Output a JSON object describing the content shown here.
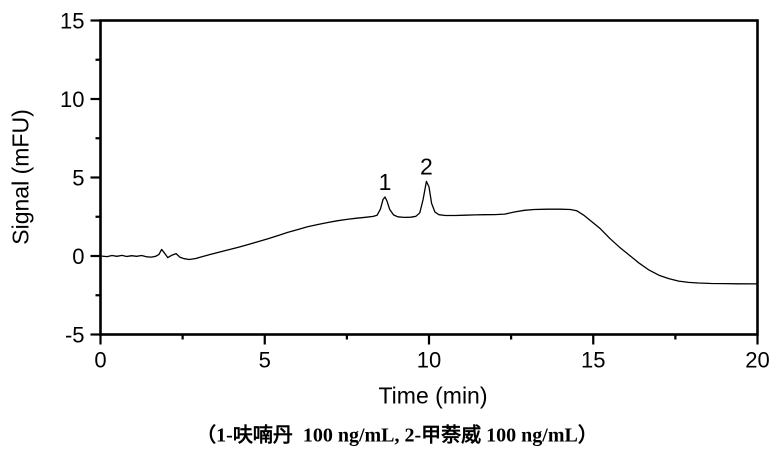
{
  "chart_data": {
    "type": "line",
    "title": "",
    "xlabel": "Time (min)",
    "ylabel": "Signal (mFU)",
    "xlim": [
      0,
      20
    ],
    "ylim": [
      -5,
      15
    ],
    "x_major_ticks": [
      0,
      5,
      10,
      15,
      20
    ],
    "x_minor_ticks": [
      2.5,
      7.5,
      12.5,
      17.5
    ],
    "y_major_ticks": [
      -5,
      0,
      5,
      10,
      15
    ],
    "y_minor_ticks": [
      -2.5,
      2.5,
      7.5,
      12.5
    ],
    "grid": false,
    "legend_position": "none",
    "line_color": "#000000",
    "frame_color": "#000000",
    "background_color": "#ffffff",
    "series": [
      {
        "name": "chromatogram-signal",
        "points": [
          [
            0.0,
            0.0
          ],
          [
            0.2,
            -0.04
          ],
          [
            0.35,
            0.03
          ],
          [
            0.5,
            -0.02
          ],
          [
            0.65,
            0.04
          ],
          [
            0.8,
            -0.03
          ],
          [
            0.95,
            0.02
          ],
          [
            1.1,
            -0.02
          ],
          [
            1.25,
            0.03
          ],
          [
            1.4,
            -0.05
          ],
          [
            1.55,
            -0.07
          ],
          [
            1.68,
            -0.02
          ],
          [
            1.78,
            0.1
          ],
          [
            1.86,
            0.42
          ],
          [
            1.95,
            0.18
          ],
          [
            2.05,
            -0.1
          ],
          [
            2.18,
            0.06
          ],
          [
            2.3,
            0.15
          ],
          [
            2.42,
            -0.08
          ],
          [
            2.55,
            -0.17
          ],
          [
            2.7,
            -0.22
          ],
          [
            2.9,
            -0.16
          ],
          [
            3.1,
            -0.04
          ],
          [
            3.35,
            0.1
          ],
          [
            3.6,
            0.24
          ],
          [
            3.9,
            0.4
          ],
          [
            4.2,
            0.56
          ],
          [
            4.5,
            0.73
          ],
          [
            4.8,
            0.92
          ],
          [
            5.1,
            1.1
          ],
          [
            5.4,
            1.3
          ],
          [
            5.7,
            1.5
          ],
          [
            6.0,
            1.68
          ],
          [
            6.3,
            1.86
          ],
          [
            6.6,
            2.0
          ],
          [
            6.9,
            2.13
          ],
          [
            7.2,
            2.24
          ],
          [
            7.5,
            2.33
          ],
          [
            7.8,
            2.41
          ],
          [
            8.1,
            2.47
          ],
          [
            8.3,
            2.52
          ],
          [
            8.42,
            2.6
          ],
          [
            8.52,
            2.98
          ],
          [
            8.6,
            3.6
          ],
          [
            8.66,
            3.76
          ],
          [
            8.72,
            3.5
          ],
          [
            8.8,
            2.98
          ],
          [
            8.92,
            2.62
          ],
          [
            9.05,
            2.5
          ],
          [
            9.25,
            2.46
          ],
          [
            9.45,
            2.47
          ],
          [
            9.6,
            2.53
          ],
          [
            9.72,
            2.75
          ],
          [
            9.82,
            3.6
          ],
          [
            9.92,
            4.75
          ],
          [
            10.0,
            4.4
          ],
          [
            10.08,
            3.35
          ],
          [
            10.18,
            2.8
          ],
          [
            10.3,
            2.63
          ],
          [
            10.5,
            2.58
          ],
          [
            10.8,
            2.58
          ],
          [
            11.1,
            2.6
          ],
          [
            11.4,
            2.62
          ],
          [
            11.7,
            2.63
          ],
          [
            12.0,
            2.64
          ],
          [
            12.3,
            2.67
          ],
          [
            12.6,
            2.8
          ],
          [
            12.9,
            2.91
          ],
          [
            13.2,
            2.96
          ],
          [
            13.6,
            2.98
          ],
          [
            14.0,
            2.98
          ],
          [
            14.3,
            2.96
          ],
          [
            14.5,
            2.88
          ],
          [
            14.7,
            2.62
          ],
          [
            14.9,
            2.28
          ],
          [
            15.2,
            1.77
          ],
          [
            15.5,
            1.13
          ],
          [
            15.8,
            0.56
          ],
          [
            16.1,
            0.05
          ],
          [
            16.4,
            -0.46
          ],
          [
            16.7,
            -0.9
          ],
          [
            17.0,
            -1.22
          ],
          [
            17.3,
            -1.44
          ],
          [
            17.6,
            -1.6
          ],
          [
            17.9,
            -1.68
          ],
          [
            18.2,
            -1.72
          ],
          [
            18.6,
            -1.75
          ],
          [
            19.0,
            -1.76
          ],
          [
            19.4,
            -1.77
          ],
          [
            20.0,
            -1.78
          ]
        ]
      }
    ],
    "annotations": [
      {
        "label": "1",
        "x": 8.66,
        "y": 3.76
      },
      {
        "label": "2",
        "x": 9.92,
        "y": 4.75
      }
    ]
  },
  "caption": {
    "text": "（1-呋喃丹  100 ng/mL, 2-甲萘威 100 ng/mL）"
  }
}
